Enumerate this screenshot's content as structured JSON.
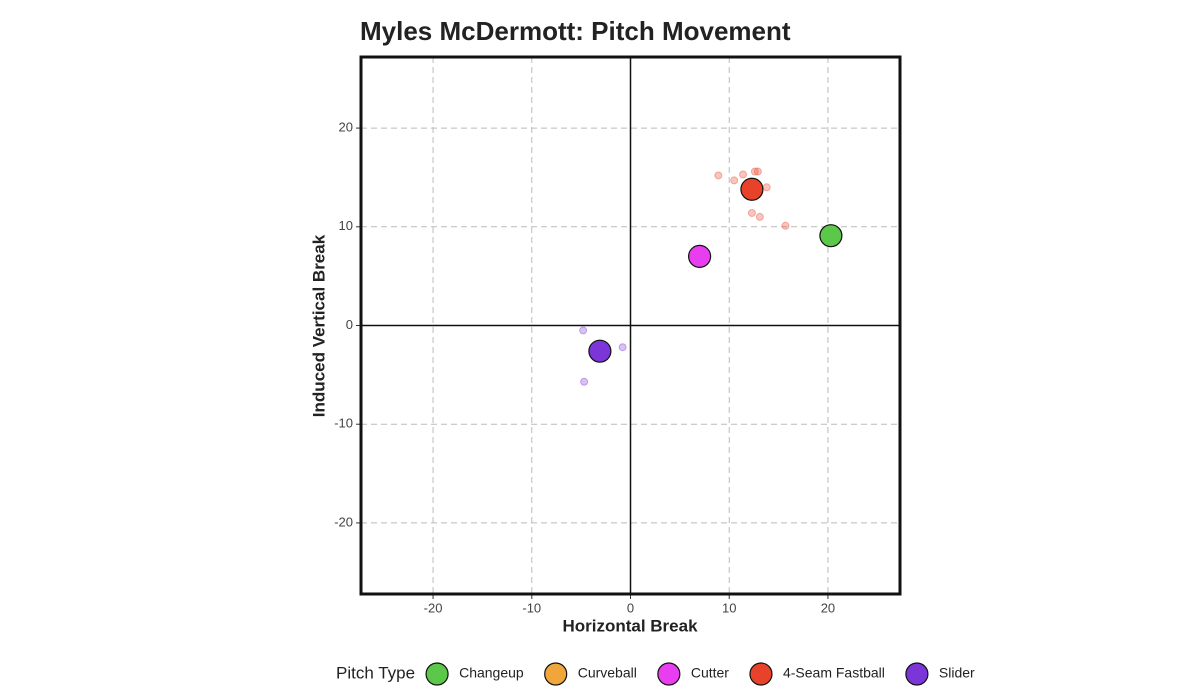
{
  "chart_data": {
    "type": "scatter",
    "title": "Myles McDermott: Pitch Movement",
    "x_label": "Horizontal Break",
    "y_label": "Induced Vertical Break",
    "legend_title": "Pitch Type",
    "legend_position": "bottom",
    "grid": true,
    "xlim": [
      -27.3,
      27.3
    ],
    "ylim": [
      -27.2,
      27.2
    ],
    "xticks": [
      -20,
      -10,
      0,
      10,
      20
    ],
    "yticks": [
      -20,
      -10,
      0,
      10,
      20
    ],
    "series": [
      {
        "name": "Changeup",
        "color": "#5cc84a",
        "mean_x": 20.3,
        "mean_y": 9.1,
        "x": [],
        "y": []
      },
      {
        "name": "Curveball",
        "color": "#f0a63a",
        "x": [],
        "y": []
      },
      {
        "name": "Cutter",
        "color": "#e83ef0",
        "mean_x": 7.0,
        "mean_y": 7.0,
        "x": [],
        "y": []
      },
      {
        "name": "4-Seam Fastball",
        "color": "#e8432a",
        "mean_x": 12.3,
        "mean_y": 13.8,
        "x": [
          8.9,
          10.5,
          11.4,
          12.6,
          12.9,
          13.8,
          12.3,
          13.1,
          15.7
        ],
        "y": [
          15.2,
          14.7,
          15.3,
          15.6,
          15.6,
          14.0,
          11.4,
          11.0,
          10.1
        ]
      },
      {
        "name": "Slider",
        "color": "#7b35d8",
        "mean_x": -3.1,
        "mean_y": -2.6,
        "x": [
          -4.8,
          -0.8,
          -4.7
        ],
        "y": [
          -0.5,
          -2.2,
          -5.7
        ]
      }
    ]
  }
}
